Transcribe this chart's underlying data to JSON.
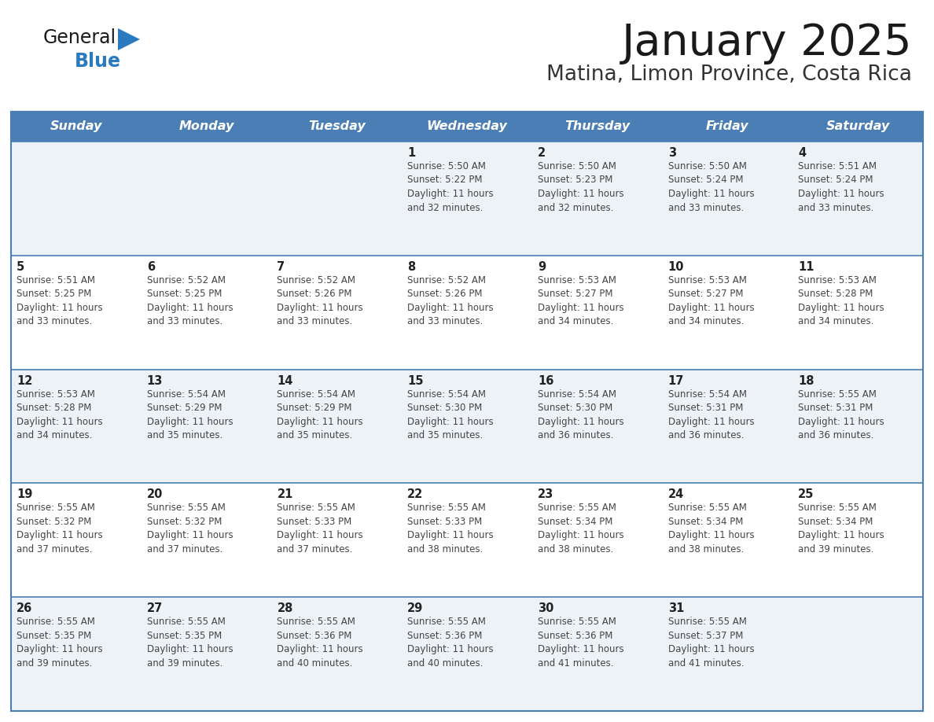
{
  "title": "January 2025",
  "subtitle": "Matina, Limon Province, Costa Rica",
  "days_of_week": [
    "Sunday",
    "Monday",
    "Tuesday",
    "Wednesday",
    "Thursday",
    "Friday",
    "Saturday"
  ],
  "header_bg": "#4a7eb5",
  "header_text": "#ffffff",
  "row_bg_even": "#edf2f7",
  "row_bg_odd": "#ffffff",
  "border_color": "#4a7eb5",
  "day_num_color": "#222222",
  "cell_text_color": "#444444",
  "title_color": "#1a1a1a",
  "subtitle_color": "#333333",
  "general_color": "#1a1a1a",
  "blue_color": "#2a7abf",
  "logo_triangle_color": "#2a7abf",
  "calendar": [
    [
      {
        "day": 0,
        "text": ""
      },
      {
        "day": 0,
        "text": ""
      },
      {
        "day": 0,
        "text": ""
      },
      {
        "day": 1,
        "text": "Sunrise: 5:50 AM\nSunset: 5:22 PM\nDaylight: 11 hours\nand 32 minutes."
      },
      {
        "day": 2,
        "text": "Sunrise: 5:50 AM\nSunset: 5:23 PM\nDaylight: 11 hours\nand 32 minutes."
      },
      {
        "day": 3,
        "text": "Sunrise: 5:50 AM\nSunset: 5:24 PM\nDaylight: 11 hours\nand 33 minutes."
      },
      {
        "day": 4,
        "text": "Sunrise: 5:51 AM\nSunset: 5:24 PM\nDaylight: 11 hours\nand 33 minutes."
      }
    ],
    [
      {
        "day": 5,
        "text": "Sunrise: 5:51 AM\nSunset: 5:25 PM\nDaylight: 11 hours\nand 33 minutes."
      },
      {
        "day": 6,
        "text": "Sunrise: 5:52 AM\nSunset: 5:25 PM\nDaylight: 11 hours\nand 33 minutes."
      },
      {
        "day": 7,
        "text": "Sunrise: 5:52 AM\nSunset: 5:26 PM\nDaylight: 11 hours\nand 33 minutes."
      },
      {
        "day": 8,
        "text": "Sunrise: 5:52 AM\nSunset: 5:26 PM\nDaylight: 11 hours\nand 33 minutes."
      },
      {
        "day": 9,
        "text": "Sunrise: 5:53 AM\nSunset: 5:27 PM\nDaylight: 11 hours\nand 34 minutes."
      },
      {
        "day": 10,
        "text": "Sunrise: 5:53 AM\nSunset: 5:27 PM\nDaylight: 11 hours\nand 34 minutes."
      },
      {
        "day": 11,
        "text": "Sunrise: 5:53 AM\nSunset: 5:28 PM\nDaylight: 11 hours\nand 34 minutes."
      }
    ],
    [
      {
        "day": 12,
        "text": "Sunrise: 5:53 AM\nSunset: 5:28 PM\nDaylight: 11 hours\nand 34 minutes."
      },
      {
        "day": 13,
        "text": "Sunrise: 5:54 AM\nSunset: 5:29 PM\nDaylight: 11 hours\nand 35 minutes."
      },
      {
        "day": 14,
        "text": "Sunrise: 5:54 AM\nSunset: 5:29 PM\nDaylight: 11 hours\nand 35 minutes."
      },
      {
        "day": 15,
        "text": "Sunrise: 5:54 AM\nSunset: 5:30 PM\nDaylight: 11 hours\nand 35 minutes."
      },
      {
        "day": 16,
        "text": "Sunrise: 5:54 AM\nSunset: 5:30 PM\nDaylight: 11 hours\nand 36 minutes."
      },
      {
        "day": 17,
        "text": "Sunrise: 5:54 AM\nSunset: 5:31 PM\nDaylight: 11 hours\nand 36 minutes."
      },
      {
        "day": 18,
        "text": "Sunrise: 5:55 AM\nSunset: 5:31 PM\nDaylight: 11 hours\nand 36 minutes."
      }
    ],
    [
      {
        "day": 19,
        "text": "Sunrise: 5:55 AM\nSunset: 5:32 PM\nDaylight: 11 hours\nand 37 minutes."
      },
      {
        "day": 20,
        "text": "Sunrise: 5:55 AM\nSunset: 5:32 PM\nDaylight: 11 hours\nand 37 minutes."
      },
      {
        "day": 21,
        "text": "Sunrise: 5:55 AM\nSunset: 5:33 PM\nDaylight: 11 hours\nand 37 minutes."
      },
      {
        "day": 22,
        "text": "Sunrise: 5:55 AM\nSunset: 5:33 PM\nDaylight: 11 hours\nand 38 minutes."
      },
      {
        "day": 23,
        "text": "Sunrise: 5:55 AM\nSunset: 5:34 PM\nDaylight: 11 hours\nand 38 minutes."
      },
      {
        "day": 24,
        "text": "Sunrise: 5:55 AM\nSunset: 5:34 PM\nDaylight: 11 hours\nand 38 minutes."
      },
      {
        "day": 25,
        "text": "Sunrise: 5:55 AM\nSunset: 5:34 PM\nDaylight: 11 hours\nand 39 minutes."
      }
    ],
    [
      {
        "day": 26,
        "text": "Sunrise: 5:55 AM\nSunset: 5:35 PM\nDaylight: 11 hours\nand 39 minutes."
      },
      {
        "day": 27,
        "text": "Sunrise: 5:55 AM\nSunset: 5:35 PM\nDaylight: 11 hours\nand 39 minutes."
      },
      {
        "day": 28,
        "text": "Sunrise: 5:55 AM\nSunset: 5:36 PM\nDaylight: 11 hours\nand 40 minutes."
      },
      {
        "day": 29,
        "text": "Sunrise: 5:55 AM\nSunset: 5:36 PM\nDaylight: 11 hours\nand 40 minutes."
      },
      {
        "day": 30,
        "text": "Sunrise: 5:55 AM\nSunset: 5:36 PM\nDaylight: 11 hours\nand 41 minutes."
      },
      {
        "day": 31,
        "text": "Sunrise: 5:55 AM\nSunset: 5:37 PM\nDaylight: 11 hours\nand 41 minutes."
      },
      {
        "day": 0,
        "text": ""
      }
    ]
  ]
}
